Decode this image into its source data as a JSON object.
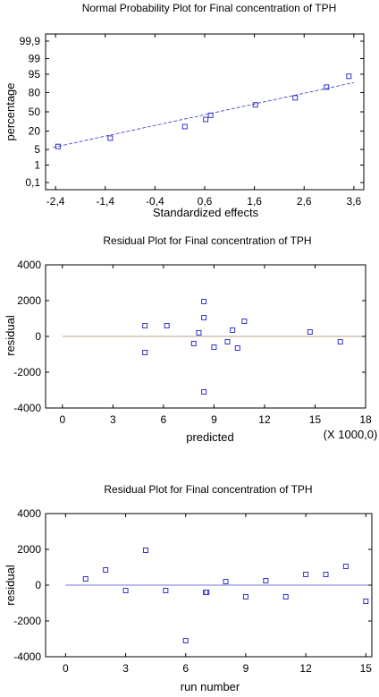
{
  "chart_data": [
    {
      "type": "scatter",
      "title": "Normal Probability Plot for Final concentration of TPH",
      "xlabel": "Standardized effects",
      "ylabel": "percentage",
      "y_scale": "normal-probability",
      "xlim": [
        -2.6,
        3.8
      ],
      "x_ticks": [
        -2.4,
        -1.4,
        -0.4,
        0.6,
        1.6,
        2.6,
        3.6
      ],
      "x_tick_labels": [
        "-2,4",
        "-1,4",
        "-0,4",
        "0,6",
        "1,6",
        "2,6",
        "3,6"
      ],
      "y_ticks": [
        0.1,
        1,
        5,
        20,
        50,
        80,
        95,
        99,
        99.9
      ],
      "y_tick_labels": [
        "0,1",
        "1",
        "5",
        "20",
        "50",
        "80",
        "95",
        "99",
        "99,9"
      ],
      "points": [
        {
          "x": -2.35,
          "y": 6.5
        },
        {
          "x": -1.3,
          "y": 12.5
        },
        {
          "x": 0.2,
          "y": 26
        },
        {
          "x": 0.62,
          "y": 37
        },
        {
          "x": 0.72,
          "y": 44
        },
        {
          "x": 1.62,
          "y": 62
        },
        {
          "x": 2.42,
          "y": 73
        },
        {
          "x": 3.05,
          "y": 86
        },
        {
          "x": 3.5,
          "y": 94
        }
      ],
      "fit_line": [
        {
          "x": -2.45,
          "y": 6
        },
        {
          "x": 3.6,
          "y": 90
        }
      ]
    },
    {
      "type": "scatter",
      "title": "Residual Plot for Final concentration of TPH",
      "xlabel": "predicted",
      "x_multiplier_label": "(X 1000,0)",
      "ylabel": "residual",
      "xlim": [
        -1,
        18
      ],
      "ylim": [
        -4000,
        4000
      ],
      "x_ticks": [
        0,
        3,
        6,
        9,
        12,
        15,
        18
      ],
      "y_ticks": [
        -4000,
        -2000,
        0,
        2000,
        4000
      ],
      "points": [
        {
          "x": 4.9,
          "y": 600
        },
        {
          "x": 4.9,
          "y": -900
        },
        {
          "x": 6.2,
          "y": 600
        },
        {
          "x": 7.8,
          "y": -400
        },
        {
          "x": 8.1,
          "y": 200
        },
        {
          "x": 8.4,
          "y": 1950
        },
        {
          "x": 8.4,
          "y": 1050
        },
        {
          "x": 8.4,
          "y": -3100
        },
        {
          "x": 9.0,
          "y": -600
        },
        {
          "x": 9.8,
          "y": -300
        },
        {
          "x": 10.1,
          "y": 350
        },
        {
          "x": 10.4,
          "y": -650
        },
        {
          "x": 10.8,
          "y": 850
        },
        {
          "x": 14.7,
          "y": 250
        },
        {
          "x": 16.5,
          "y": -300
        }
      ]
    },
    {
      "type": "scatter",
      "title": "Residual Plot for Final concentration of TPH",
      "xlabel": "run number",
      "ylabel": "residual",
      "xlim": [
        -1,
        15.3
      ],
      "ylim": [
        -4000,
        4000
      ],
      "x_ticks": [
        0,
        3,
        6,
        9,
        12,
        15
      ],
      "y_ticks": [
        -4000,
        -2000,
        0,
        2000,
        4000
      ],
      "points": [
        {
          "x": 1,
          "y": 350
        },
        {
          "x": 2,
          "y": 850
        },
        {
          "x": 3,
          "y": -300
        },
        {
          "x": 4,
          "y": 1950
        },
        {
          "x": 5,
          "y": -300
        },
        {
          "x": 6,
          "y": -3100
        },
        {
          "x": 7,
          "y": -400
        },
        {
          "x": 7.05,
          "y": -400
        },
        {
          "x": 8,
          "y": 200
        },
        {
          "x": 9,
          "y": -650
        },
        {
          "x": 10,
          "y": 250
        },
        {
          "x": 11,
          "y": -650
        },
        {
          "x": 12,
          "y": 600
        },
        {
          "x": 13,
          "y": 600
        },
        {
          "x": 14,
          "y": 1050
        },
        {
          "x": 15,
          "y": -900
        }
      ]
    }
  ]
}
